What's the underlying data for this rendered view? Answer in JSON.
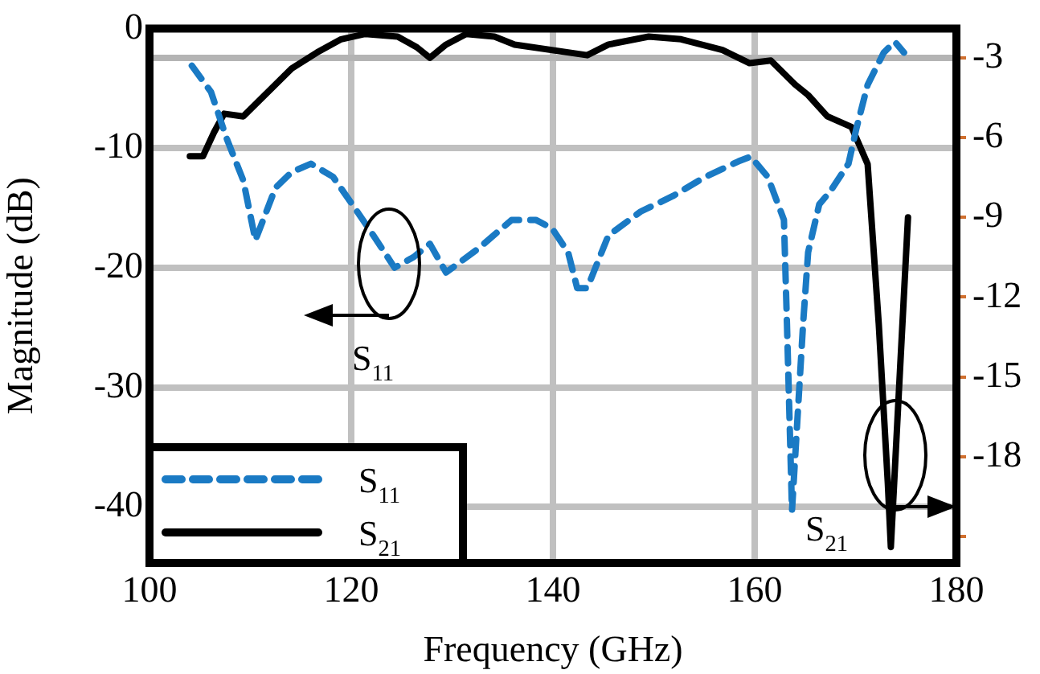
{
  "chart_data": {
    "type": "line",
    "xlabel": "Frequency (GHz)",
    "ylabel": "Magnitude (dB)",
    "xlim": [
      100,
      180
    ],
    "xticks": [
      100,
      120,
      140,
      160,
      180
    ],
    "ylim": [
      -44.7,
      0
    ],
    "yticks": [
      0,
      -10,
      -20,
      -30,
      -40
    ],
    "y2lim": [
      -22,
      -1.9
    ],
    "y2ticks": [
      -3,
      -6,
      -9,
      -12,
      -15,
      -18,
      {
        "value": -21,
        "label": null
      }
    ],
    "grid": true,
    "legend": "bottom left",
    "ref_lines": [
      {
        "axis": "y2",
        "value": -3,
        "color": "#b4b4b4"
      }
    ],
    "annotations": [
      "S$_{11}$",
      "S$_{21}$"
    ],
    "series": [
      {
        "name": "S$_{11}$",
        "color": "#1a7ac4",
        "line_style": "dashed",
        "x": [
          104.2,
          106.1,
          107.7,
          109.3,
          110.5,
          112.5,
          114.1,
          116,
          118.2,
          120.1,
          122.2,
          124.3,
          126.2,
          127.8,
          129.4,
          132.6,
          135.9,
          138.3,
          139.9,
          141.5,
          142.4,
          143.4,
          145.5,
          148.7,
          151.9,
          155.1,
          158.4,
          159.6,
          161.3,
          162.9,
          163.2,
          163.7,
          164.8,
          165.3,
          166.4,
          167.5,
          169.3,
          170.1,
          171.2,
          172.8,
          173.9,
          174.8
        ],
        "values": [
          -3.1,
          -5.3,
          -9.3,
          -12.7,
          -17.7,
          -13.3,
          -12,
          -11.3,
          -12.4,
          -14.7,
          -17.3,
          -20,
          -19.1,
          -18,
          -20.4,
          -18.4,
          -16,
          -16,
          -16.7,
          -18.7,
          -21.7,
          -21.7,
          -17.3,
          -15.3,
          -14,
          -12.4,
          -11.1,
          -10.7,
          -12.4,
          -16,
          -24.7,
          -40.3,
          -24.7,
          -18.7,
          -14.7,
          -13.6,
          -11.3,
          -8.3,
          -4.7,
          -2,
          -1.1,
          -2
        ]
      },
      {
        "name": "S$_{21}$",
        "color": "#000000",
        "line_style": "solid",
        "axis": "y2",
        "x": [
          104,
          105.3,
          106.4,
          107.4,
          109.3,
          111.7,
          114.1,
          116.6,
          119,
          121.4,
          124.6,
          126.5,
          127.8,
          129.4,
          131.4,
          134.2,
          136.2,
          143.4,
          145.5,
          149.5,
          152.7,
          156.8,
          159.5,
          161.6,
          164,
          165.3,
          167.2,
          169.6,
          171.2,
          172.3,
          173.2,
          173.5,
          174.4,
          175.2
        ],
        "values": [
          -6.7,
          -6.7,
          -5.8,
          -5.1,
          -5.2,
          -4.3,
          -3.4,
          -2.8,
          -2.3,
          -2.1,
          -2.2,
          -2.6,
          -3,
          -2.5,
          -2.1,
          -2.2,
          -2.5,
          -2.9,
          -2.5,
          -2.2,
          -2.3,
          -2.7,
          -3.2,
          -3.1,
          -4,
          -4.4,
          -5.2,
          -5.6,
          -7,
          -13,
          -19,
          -21.4,
          -14.8,
          -9
        ]
      }
    ]
  }
}
